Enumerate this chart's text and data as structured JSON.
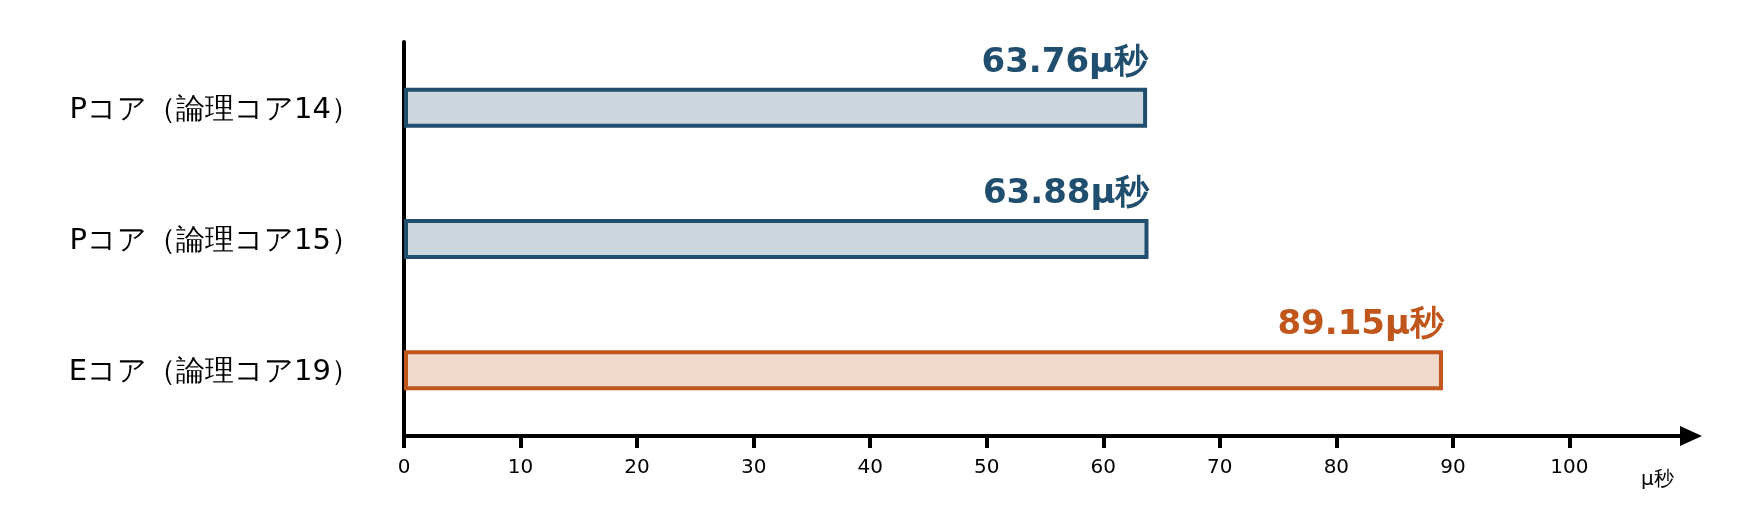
{
  "chart_data": {
    "type": "bar",
    "orientation": "horizontal",
    "categories": [
      "Pコア（論理コア14）",
      "Pコア（論理コア15）",
      "Eコア（論理コア19）"
    ],
    "values": [
      63.76,
      63.88,
      89.15
    ],
    "value_labels": [
      "63.76μ秒",
      "63.88μ秒",
      "89.15μ秒"
    ],
    "colors": [
      "#1f4e6e",
      "#1f4e6e",
      "#c0561c"
    ],
    "xlabel": "μ秒",
    "xlim": [
      0,
      110
    ],
    "xticks": [
      0,
      10,
      20,
      30,
      40,
      50,
      60,
      70,
      80,
      90,
      100
    ],
    "grid": false
  }
}
